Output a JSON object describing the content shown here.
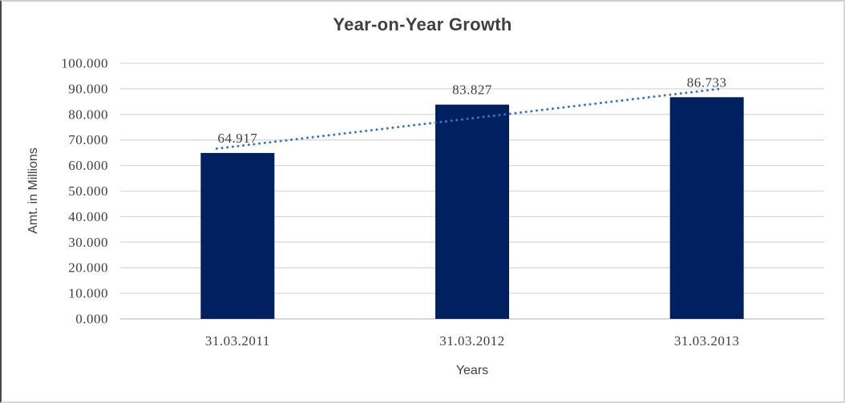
{
  "chart_data": {
    "type": "bar",
    "title": "Year-on-Year Growth",
    "xlabel": "Years",
    "ylabel": "Amt. in Millions",
    "categories": [
      "31.03.2011",
      "31.03.2012",
      "31.03.2013"
    ],
    "values": [
      64.917,
      83.827,
      86.733
    ],
    "data_labels": [
      "64.917",
      "83.827",
      "86.733"
    ],
    "ylim": [
      0,
      100
    ],
    "ytick_step": 10,
    "ytick_labels": [
      "0.000",
      "10.000",
      "20.000",
      "30.000",
      "40.000",
      "50.000",
      "60.000",
      "70.000",
      "80.000",
      "90.000",
      "100.000"
    ],
    "grid": true,
    "legend_position": "none",
    "bar_color": "#002060",
    "trendline": {
      "type": "linear",
      "style": "dotted",
      "color": "#3777BF"
    },
    "gridline_color": "#D9D9D9",
    "axis_line_color": "#BFBFBF",
    "text_color": "#404040"
  }
}
